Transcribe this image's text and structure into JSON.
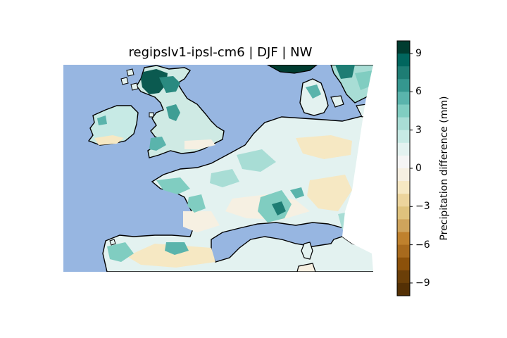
{
  "title": "regipslv1-ipsl-cm6 | DJF | NW",
  "colorbar": {
    "label": "Precipitation difference (mm)",
    "range": [
      -10,
      10
    ],
    "ticks": [
      9,
      6,
      3,
      0,
      -3,
      -6,
      -9
    ],
    "tick_labels": [
      "9",
      "6",
      "3",
      "0",
      "−3",
      "−6",
      "−9"
    ],
    "bins": [
      "#003c30",
      "#01665e",
      "#1e7d74",
      "#35978f",
      "#5ab4ac",
      "#80cdc1",
      "#a8ddd5",
      "#c7eae5",
      "#e3f2f0",
      "#f5f5f5",
      "#f6f0e2",
      "#f6e8c3",
      "#ecd49c",
      "#dfc27d",
      "#cfa45c",
      "#bf812d",
      "#a86a1d",
      "#8c510a",
      "#6b3f08",
      "#543005"
    ]
  },
  "map": {
    "ocean_color": "#97b6e1",
    "outside_color": "#ffffff",
    "region": "Western Europe (British Isles, France, Benelux, Denmark, northern Spain/Italy)"
  }
}
